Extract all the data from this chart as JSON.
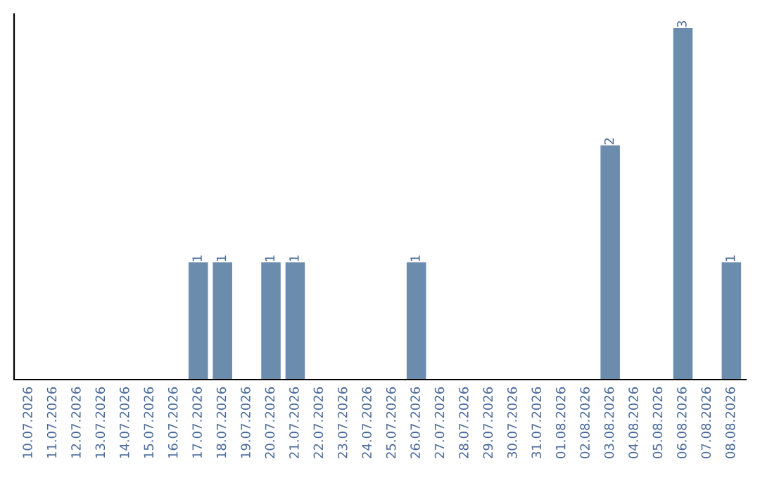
{
  "chart_data": {
    "type": "bar",
    "categories": [
      "10.07.2026",
      "11.07.2026",
      "12.07.2026",
      "13.07.2026",
      "14.07.2026",
      "15.07.2026",
      "16.07.2026",
      "17.07.2026",
      "18.07.2026",
      "19.07.2026",
      "20.07.2026",
      "21.07.2026",
      "22.07.2026",
      "23.07.2026",
      "24.07.2026",
      "25.07.2026",
      "26.07.2026",
      "27.07.2026",
      "28.07.2026",
      "29.07.2026",
      "30.07.2026",
      "31.07.2026",
      "01.08.2026",
      "02.08.2026",
      "03.08.2026",
      "04.08.2026",
      "05.08.2026",
      "06.08.2026",
      "07.08.2026",
      "08.08.2026"
    ],
    "values": [
      0,
      0,
      0,
      0,
      0,
      0,
      0,
      1,
      1,
      0,
      1,
      1,
      0,
      0,
      0,
      0,
      1,
      0,
      0,
      0,
      0,
      0,
      0,
      0,
      2,
      0,
      0,
      3,
      0,
      1
    ],
    "value_labels": [
      null,
      null,
      null,
      null,
      null,
      null,
      null,
      "1",
      "1",
      null,
      "1",
      "1",
      null,
      null,
      null,
      null,
      "1",
      null,
      null,
      null,
      null,
      null,
      null,
      null,
      "2",
      null,
      null,
      "3",
      null,
      "1"
    ],
    "color": "#6b8cad",
    "tick_labels": "x",
    "grid": false,
    "legend": false
  }
}
